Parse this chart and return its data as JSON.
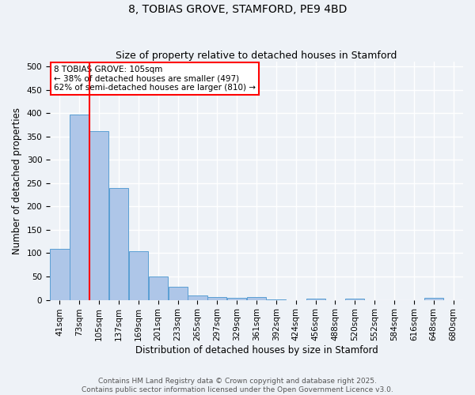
{
  "title": "8, TOBIAS GROVE, STAMFORD, PE9 4BD",
  "subtitle": "Size of property relative to detached houses in Stamford",
  "xlabel": "Distribution of detached houses by size in Stamford",
  "ylabel": "Number of detached properties",
  "categories": [
    "41sqm",
    "73sqm",
    "105sqm",
    "137sqm",
    "169sqm",
    "201sqm",
    "233sqm",
    "265sqm",
    "297sqm",
    "329sqm",
    "361sqm",
    "392sqm",
    "424sqm",
    "456sqm",
    "488sqm",
    "520sqm",
    "552sqm",
    "584sqm",
    "616sqm",
    "648sqm",
    "680sqm"
  ],
  "values": [
    110,
    397,
    362,
    240,
    105,
    50,
    28,
    9,
    6,
    5,
    6,
    1,
    0,
    3,
    0,
    3,
    0,
    0,
    0,
    4,
    0
  ],
  "bar_color": "#aec6e8",
  "bar_edge_color": "#5a9fd4",
  "red_line_index": 2,
  "annotation_line1": "8 TOBIAS GROVE: 105sqm",
  "annotation_line2": "← 38% of detached houses are smaller (497)",
  "annotation_line3": "62% of semi-detached houses are larger (810) →",
  "ylim": [
    0,
    510
  ],
  "yticks": [
    0,
    50,
    100,
    150,
    200,
    250,
    300,
    350,
    400,
    450,
    500
  ],
  "footer1": "Contains HM Land Registry data © Crown copyright and database right 2025.",
  "footer2": "Contains public sector information licensed under the Open Government Licence v3.0.",
  "background_color": "#eef2f7",
  "grid_color": "#ffffff",
  "title_fontsize": 10,
  "subtitle_fontsize": 9,
  "axis_label_fontsize": 8.5,
  "tick_fontsize": 7.5,
  "footer_fontsize": 6.5
}
